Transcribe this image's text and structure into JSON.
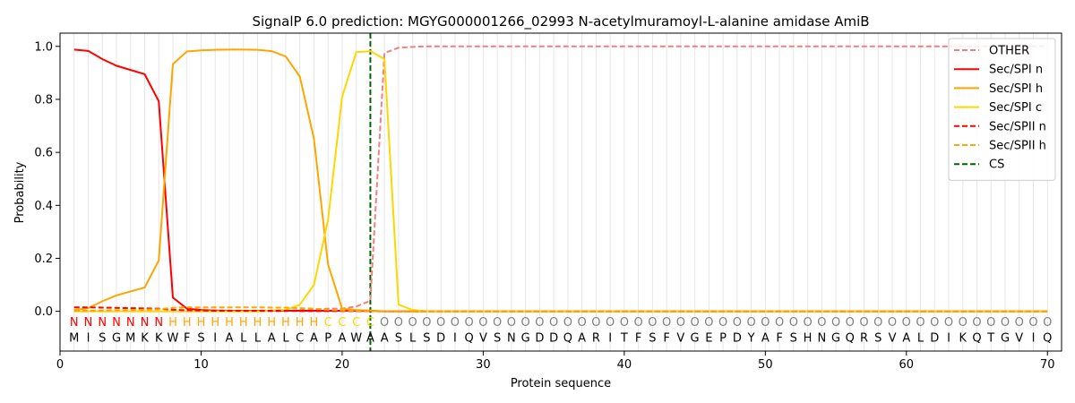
{
  "chart_data": {
    "type": "line",
    "title": "SignalP 6.0 prediction: MGYG000001266_02993 N-acetylmuramoyl-L-alanine amidase AmiB",
    "xlabel": "Protein sequence",
    "ylabel": "Probability",
    "xlim": [
      0,
      71
    ],
    "ylim": [
      -0.15,
      1.05
    ],
    "xticks": [
      0,
      10,
      20,
      30,
      40,
      50,
      60,
      70
    ],
    "yticks": [
      0.0,
      0.2,
      0.4,
      0.6,
      0.8,
      1.0
    ],
    "ytick_labels": [
      "0.0",
      "0.2",
      "0.4",
      "0.6",
      "0.8",
      "1.0"
    ],
    "grid": "vertical lines at every residue",
    "legend_position": "top-right",
    "sequence": "MISGMKKWFSIALLALCAPAWAASLSDIQVSNGDDQARITFSFVGEPDYAFSHNGQRSVALDIKQTGVIQ",
    "labels": "NNNNNNNHHHHHHHHHHHCCCCOOOOOOOOOOOOOOOOOOOOOOOOOOOOOOOOOOOOOOOOOOOOOOOO",
    "label_colors": {
      "N": "#ff0000",
      "H": "#ffa500",
      "C": "#ffd700",
      "O": "#808080"
    },
    "cleavage_site": 22,
    "series": [
      {
        "name": "OTHER",
        "color": "#f08080",
        "dash": true,
        "values": [
          0.0,
          0.0,
          0.0,
          0.0,
          0.0,
          0.0,
          0.0,
          0.0,
          0.0,
          0.0,
          0.0,
          0.0,
          0.0,
          0.0,
          0.0,
          0.0,
          0.005,
          0.008,
          0.01,
          0.01,
          0.018,
          0.04,
          0.975,
          0.995,
          0.998,
          1.0,
          1.0,
          1.0,
          1.0,
          1.0,
          1.0,
          1.0,
          1.0,
          1.0,
          1.0,
          1.0,
          1.0,
          1.0,
          1.0,
          1.0,
          1.0,
          1.0,
          1.0,
          1.0,
          1.0,
          1.0,
          1.0,
          1.0,
          1.0,
          1.0,
          1.0,
          1.0,
          1.0,
          1.0,
          1.0,
          1.0,
          1.0,
          1.0,
          1.0,
          1.0,
          1.0,
          1.0,
          1.0,
          1.0,
          1.0,
          1.0,
          1.0,
          1.0,
          1.0,
          1.0
        ]
      },
      {
        "name": "Sec/SPI n",
        "color": "#ff0000",
        "dash": false,
        "values": [
          0.988,
          0.983,
          0.952,
          0.927,
          0.911,
          0.895,
          0.793,
          0.052,
          0.01,
          0.005,
          0.003,
          0.002,
          0.002,
          0.002,
          0.002,
          0.002,
          0.002,
          0.002,
          0.002,
          0.002,
          0.002,
          0.001,
          0.0,
          0.0,
          0.0,
          0.0,
          0.0,
          0.0,
          0.0,
          0.0,
          0.0,
          0.0,
          0.0,
          0.0,
          0.0,
          0.0,
          0.0,
          0.0,
          0.0,
          0.0,
          0.0,
          0.0,
          0.0,
          0.0,
          0.0,
          0.0,
          0.0,
          0.0,
          0.0,
          0.0,
          0.0,
          0.0,
          0.0,
          0.0,
          0.0,
          0.0,
          0.0,
          0.0,
          0.0,
          0.0,
          0.0,
          0.0,
          0.0,
          0.0,
          0.0,
          0.0,
          0.0,
          0.0,
          0.0,
          0.0
        ]
      },
      {
        "name": "Sec/SPI h",
        "color": "#ffa500",
        "dash": false,
        "values": [
          0.005,
          0.012,
          0.038,
          0.06,
          0.075,
          0.09,
          0.192,
          0.933,
          0.981,
          0.985,
          0.987,
          0.988,
          0.988,
          0.987,
          0.982,
          0.962,
          0.886,
          0.652,
          0.177,
          0.01,
          0.005,
          0.003,
          0.0,
          0.0,
          0.0,
          0.0,
          0.0,
          0.0,
          0.0,
          0.0,
          0.0,
          0.0,
          0.0,
          0.0,
          0.0,
          0.0,
          0.0,
          0.0,
          0.0,
          0.0,
          0.0,
          0.0,
          0.0,
          0.0,
          0.0,
          0.0,
          0.0,
          0.0,
          0.0,
          0.0,
          0.0,
          0.0,
          0.0,
          0.0,
          0.0,
          0.0,
          0.0,
          0.0,
          0.0,
          0.0,
          0.0,
          0.0,
          0.0,
          0.0,
          0.0,
          0.0,
          0.0,
          0.0,
          0.0,
          0.0
        ]
      },
      {
        "name": "Sec/SPI c",
        "color": "#ffd700",
        "dash": false,
        "values": [
          0.0,
          0.0,
          0.0,
          0.0,
          0.0,
          0.0,
          0.0,
          0.0,
          0.0,
          0.0,
          0.0,
          0.0,
          0.0,
          0.0,
          0.003,
          0.005,
          0.025,
          0.1,
          0.345,
          0.81,
          0.978,
          0.982,
          0.952,
          0.025,
          0.005,
          0.0,
          0.0,
          0.0,
          0.0,
          0.0,
          0.0,
          0.0,
          0.0,
          0.0,
          0.0,
          0.0,
          0.0,
          0.0,
          0.0,
          0.0,
          0.0,
          0.0,
          0.0,
          0.0,
          0.0,
          0.0,
          0.0,
          0.0,
          0.0,
          0.0,
          0.0,
          0.0,
          0.0,
          0.0,
          0.0,
          0.0,
          0.0,
          0.0,
          0.0,
          0.0,
          0.0,
          0.0,
          0.0,
          0.0,
          0.0,
          0.0,
          0.0,
          0.0,
          0.0,
          0.0
        ]
      },
      {
        "name": "Sec/SPII n",
        "color": "#ff0000",
        "dash": true,
        "values": [
          0.015,
          0.015,
          0.014,
          0.013,
          0.012,
          0.011,
          0.01,
          0.006,
          0.004,
          0.003,
          0.002,
          0.002,
          0.002,
          0.002,
          0.002,
          0.002,
          0.001,
          0.001,
          0.001,
          0.001,
          0.001,
          0.001,
          0.0,
          0.0,
          0.0,
          0.0,
          0.0,
          0.0,
          0.0,
          0.0,
          0.0,
          0.0,
          0.0,
          0.0,
          0.0,
          0.0,
          0.0,
          0.0,
          0.0,
          0.0,
          0.0,
          0.0,
          0.0,
          0.0,
          0.0,
          0.0,
          0.0,
          0.0,
          0.0,
          0.0,
          0.0,
          0.0,
          0.0,
          0.0,
          0.0,
          0.0,
          0.0,
          0.0,
          0.0,
          0.0,
          0.0,
          0.0,
          0.0,
          0.0,
          0.0,
          0.0,
          0.0,
          0.0,
          0.0,
          0.0
        ]
      },
      {
        "name": "Sec/SPII h",
        "color": "#ffa500",
        "dash": true,
        "values": [
          0.002,
          0.002,
          0.003,
          0.004,
          0.005,
          0.006,
          0.008,
          0.013,
          0.015,
          0.015,
          0.015,
          0.015,
          0.015,
          0.015,
          0.014,
          0.014,
          0.012,
          0.01,
          0.006,
          0.003,
          0.002,
          0.001,
          0.0,
          0.0,
          0.0,
          0.0,
          0.0,
          0.0,
          0.0,
          0.0,
          0.0,
          0.0,
          0.0,
          0.0,
          0.0,
          0.0,
          0.0,
          0.0,
          0.0,
          0.0,
          0.0,
          0.0,
          0.0,
          0.0,
          0.0,
          0.0,
          0.0,
          0.0,
          0.0,
          0.0,
          0.0,
          0.0,
          0.0,
          0.0,
          0.0,
          0.0,
          0.0,
          0.0,
          0.0,
          0.0,
          0.0,
          0.0,
          0.0,
          0.0,
          0.0,
          0.0,
          0.0,
          0.0,
          0.0,
          0.0
        ]
      }
    ],
    "legend": [
      {
        "name": "OTHER",
        "color": "#f08080",
        "dash": "dash"
      },
      {
        "name": "Sec/SPI n",
        "color": "#ff0000",
        "dash": "solid"
      },
      {
        "name": "Sec/SPI h",
        "color": "#ffa500",
        "dash": "solid"
      },
      {
        "name": "Sec/SPI c",
        "color": "#ffd700",
        "dash": "solid"
      },
      {
        "name": "Sec/SPII n",
        "color": "#ff0000",
        "dash": "dash"
      },
      {
        "name": "Sec/SPII h",
        "color": "#ffa500",
        "dash": "dash"
      },
      {
        "name": "CS",
        "color": "#006400",
        "dash": "dash"
      }
    ]
  }
}
